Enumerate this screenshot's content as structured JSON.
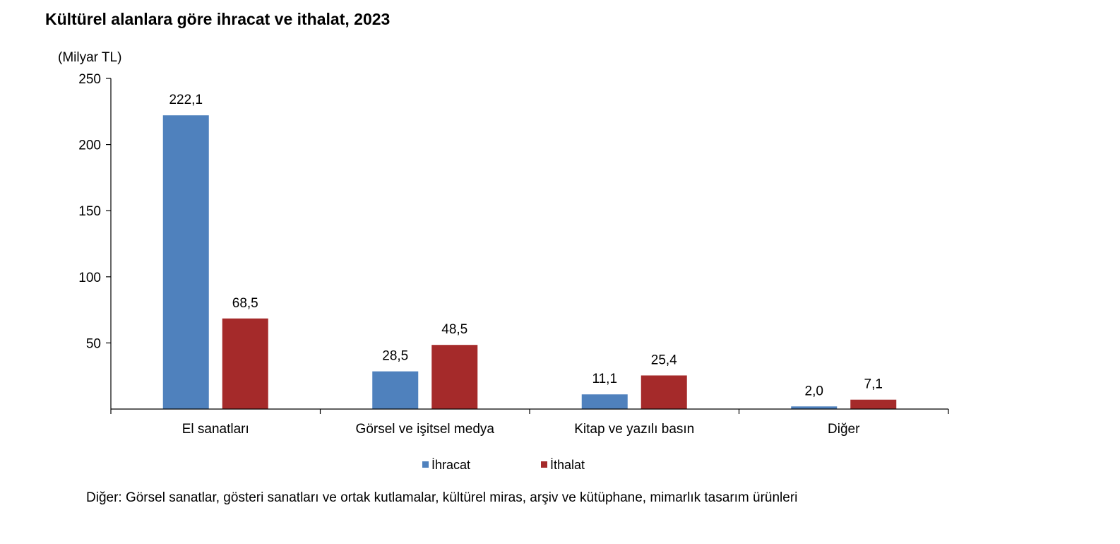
{
  "chart_data": {
    "type": "bar",
    "title": "Kültürel alanlara göre ihracat ve ithalat, 2023",
    "ylabel": "(Milyar TL)",
    "xlabel": "",
    "ylim": [
      0,
      250
    ],
    "yticks": [
      50,
      100,
      150,
      200,
      250
    ],
    "grid": false,
    "legend": "bottom",
    "categories": [
      "El sanatları",
      "Görsel ve işitsel medya",
      "Kitap ve yazılı basın",
      "Diğer"
    ],
    "series": [
      {
        "name": "İhracat",
        "color": "#4f81bd",
        "values": [
          222.1,
          28.5,
          11.1,
          2.0
        ],
        "labels": [
          "222,1",
          "28,5",
          "11,1",
          "2,0"
        ]
      },
      {
        "name": "İthalat",
        "color": "#a52a2a",
        "values": [
          68.5,
          48.5,
          25.4,
          7.1
        ],
        "labels": [
          "68,5",
          "48,5",
          "25,4",
          "7,1"
        ]
      }
    ]
  },
  "footnote": "Diğer: Görsel sanatlar, gösteri sanatları ve ortak kutlamalar, kültürel miras, arşiv ve kütüphane, mimarlık tasarım ürünleri"
}
